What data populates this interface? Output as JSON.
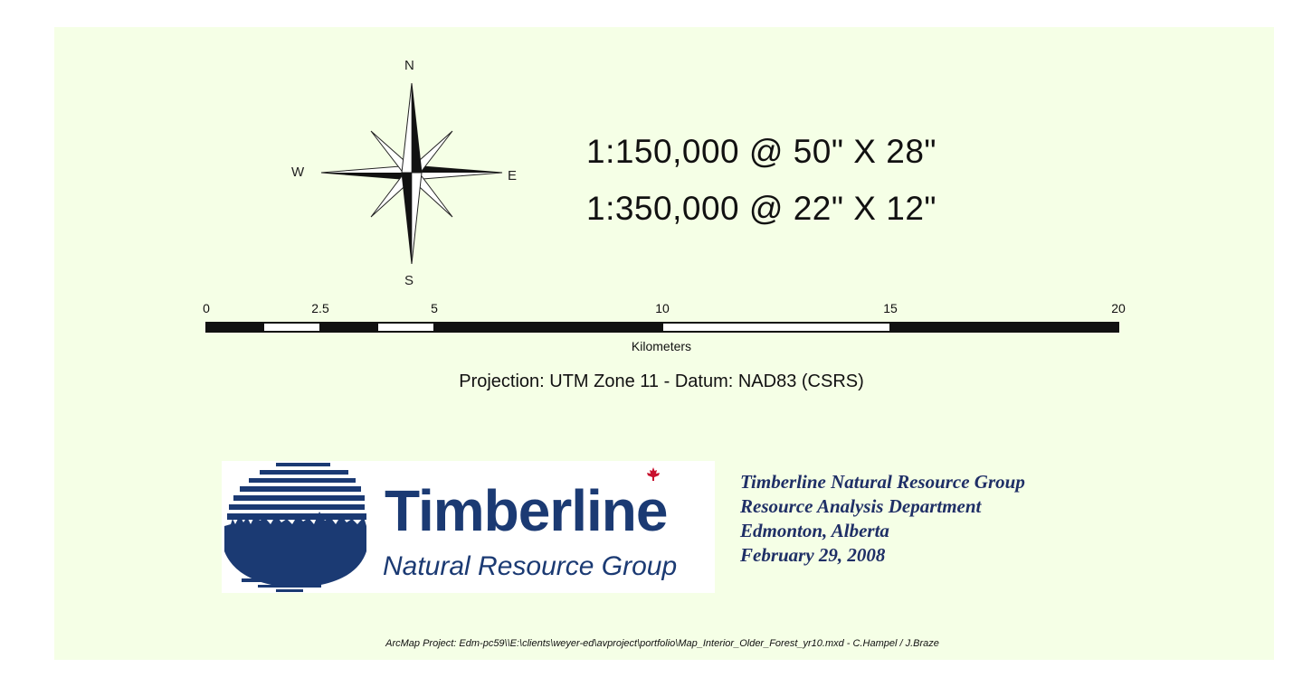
{
  "compass": {
    "north": "N",
    "south": "S",
    "east": "E",
    "west": "W"
  },
  "scale_text": {
    "line1": "1:150,000 @ 50\" X 28\"",
    "line2": "1:350,000 @ 22\" X 12\""
  },
  "scalebar": {
    "ticks": [
      "0",
      "2.5",
      "5",
      "10",
      "15",
      "20"
    ],
    "tick_values": [
      0,
      2.5,
      5,
      10,
      15,
      20
    ],
    "max": 20,
    "units": "Kilometers"
  },
  "projection": "Projection: UTM Zone 11  -  Datum: NAD83 (CSRS)",
  "logo": {
    "word": "Timberline",
    "tagline": "Natural Resource Group"
  },
  "organization": {
    "line1": "Timberline Natural Resource Group",
    "line2": "Resource Analysis Department",
    "line3": "Edmonton, Alberta",
    "line4": "February 29, 2008"
  },
  "footer": "ArcMap Project: Edm-pc59\\\\E:\\clients\\weyer-ed\\avproject\\portfolio\\Map_Interior_Older_Forest_yr10.mxd - C.Hampel / J.Braze",
  "colors": {
    "background": "#f5ffe6",
    "logo_blue": "#1b3a73",
    "org_text": "#1f2f66"
  }
}
